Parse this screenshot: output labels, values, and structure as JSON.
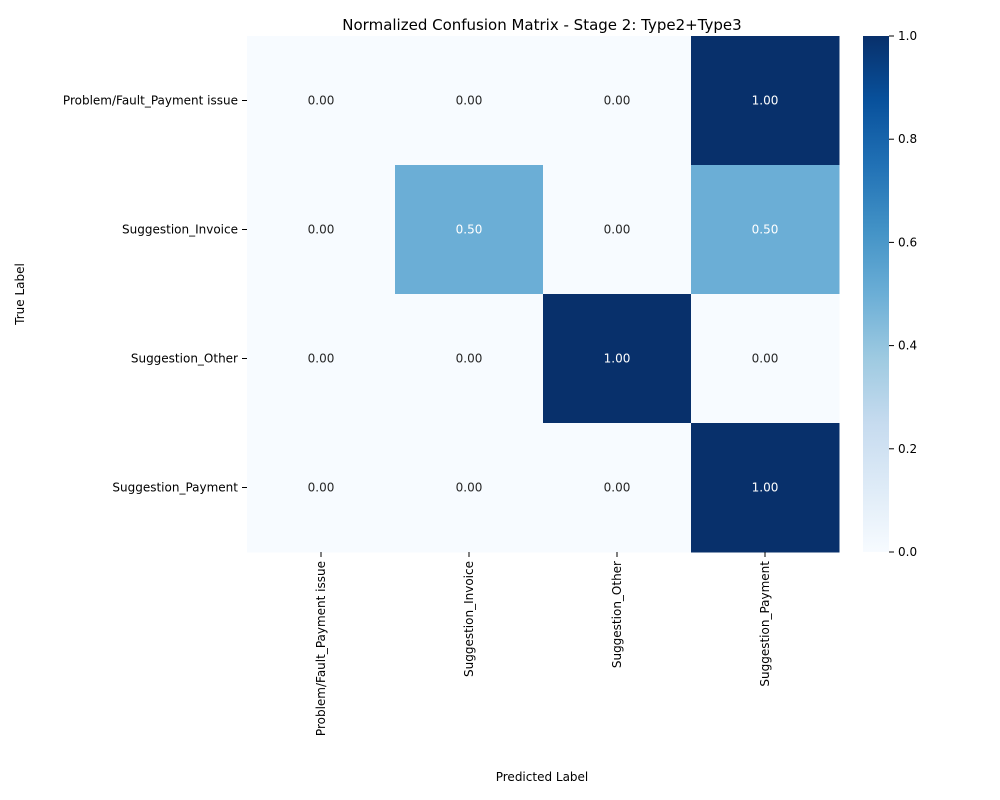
{
  "chart_data": {
    "type": "heatmap",
    "title": "Normalized Confusion Matrix - Stage 2: Type2+Type3",
    "xlabel": "Predicted Label",
    "ylabel": "True Label",
    "x_categories": [
      "Problem/Fault_Payment issue",
      "Suggestion_Invoice",
      "Suggestion_Other",
      "Suggestion_Payment"
    ],
    "y_categories": [
      "Problem/Fault_Payment issue",
      "Suggestion_Invoice",
      "Suggestion_Other",
      "Suggestion_Payment"
    ],
    "values": [
      [
        0.0,
        0.0,
        0.0,
        1.0
      ],
      [
        0.0,
        0.5,
        0.0,
        0.5
      ],
      [
        0.0,
        0.0,
        1.0,
        0.0
      ],
      [
        0.0,
        0.0,
        0.0,
        1.0
      ]
    ],
    "cell_labels": [
      [
        "0.00",
        "0.00",
        "0.00",
        "1.00"
      ],
      [
        "0.00",
        "0.50",
        "0.00",
        "0.50"
      ],
      [
        "0.00",
        "0.00",
        "1.00",
        "0.00"
      ],
      [
        "0.00",
        "0.00",
        "0.00",
        "1.00"
      ]
    ],
    "colorbar": {
      "range": [
        0,
        1
      ],
      "ticks": [
        "0.0",
        "0.2",
        "0.4",
        "0.6",
        "0.8",
        "1.0"
      ],
      "colormap": "Blues",
      "low_color": "#f7fbff",
      "mid_color": "#63acd6",
      "high_color": "#08306b"
    }
  }
}
